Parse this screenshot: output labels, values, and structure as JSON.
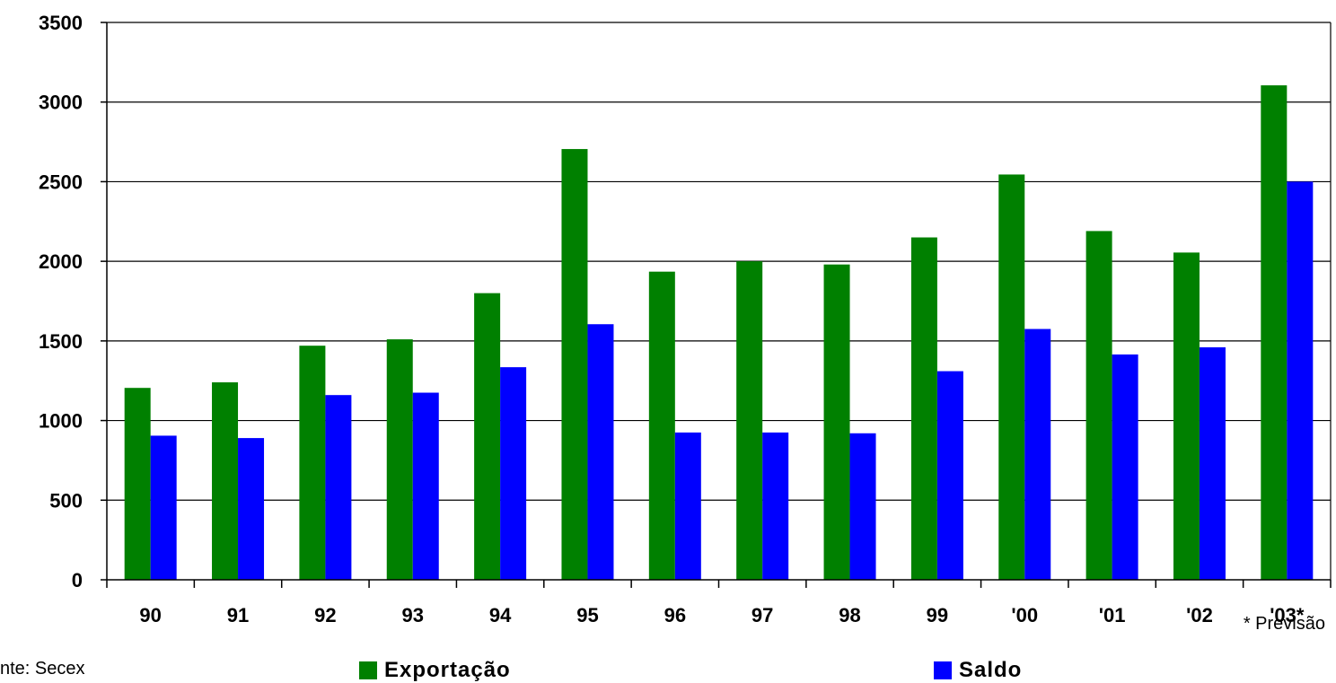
{
  "chart_data": {
    "type": "bar",
    "categories": [
      "90",
      "91",
      "92",
      "93",
      "94",
      "95",
      "96",
      "97",
      "98",
      "99",
      "'00",
      "'01",
      "'02",
      "'03*"
    ],
    "series": [
      {
        "name": "Exportação",
        "color": "#008000",
        "values": [
          1205,
          1240,
          1470,
          1510,
          1800,
          2705,
          1935,
          2000,
          1980,
          2150,
          2545,
          2190,
          2055,
          3105
        ]
      },
      {
        "name": "Saldo",
        "color": "#0000ff",
        "values": [
          905,
          890,
          1160,
          1175,
          1335,
          1605,
          925,
          925,
          920,
          1310,
          1575,
          1415,
          1460,
          2500
        ]
      }
    ],
    "yticks": [
      "0",
      "500",
      "1000",
      "1500",
      "2000",
      "2500",
      "3000",
      "3500"
    ],
    "ylim": [
      0,
      3500
    ],
    "grid": true,
    "legend_position": "bottom"
  },
  "notes": {
    "forecast": "* Previsão",
    "source": "nte: Secex"
  }
}
